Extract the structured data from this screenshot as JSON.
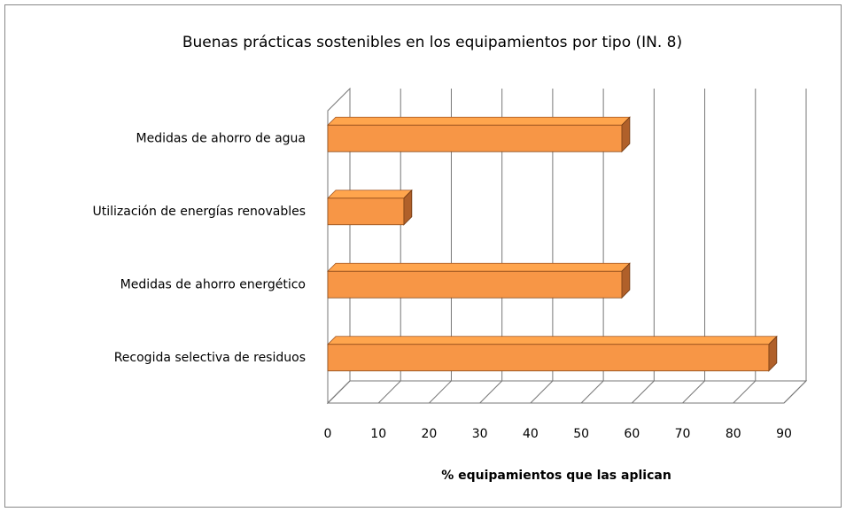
{
  "chart_data": {
    "type": "bar",
    "orientation": "horizontal",
    "title": "Buenas prácticas sostenibles en los equipamientos por tipo (IN. 8)",
    "xlabel": "% equipamientos que las aplican",
    "categories": [
      "Recogida selectiva de residuos",
      "Medidas de ahorro energético",
      "Utilización de energías renovables",
      "Medidas de ahorro de agua"
    ],
    "values": [
      87,
      58,
      15,
      58
    ],
    "color": "#f79646",
    "xlim": [
      0,
      90
    ],
    "xticks": [
      0,
      10,
      20,
      30,
      40,
      50,
      60,
      70,
      80,
      90
    ],
    "grid": true
  }
}
